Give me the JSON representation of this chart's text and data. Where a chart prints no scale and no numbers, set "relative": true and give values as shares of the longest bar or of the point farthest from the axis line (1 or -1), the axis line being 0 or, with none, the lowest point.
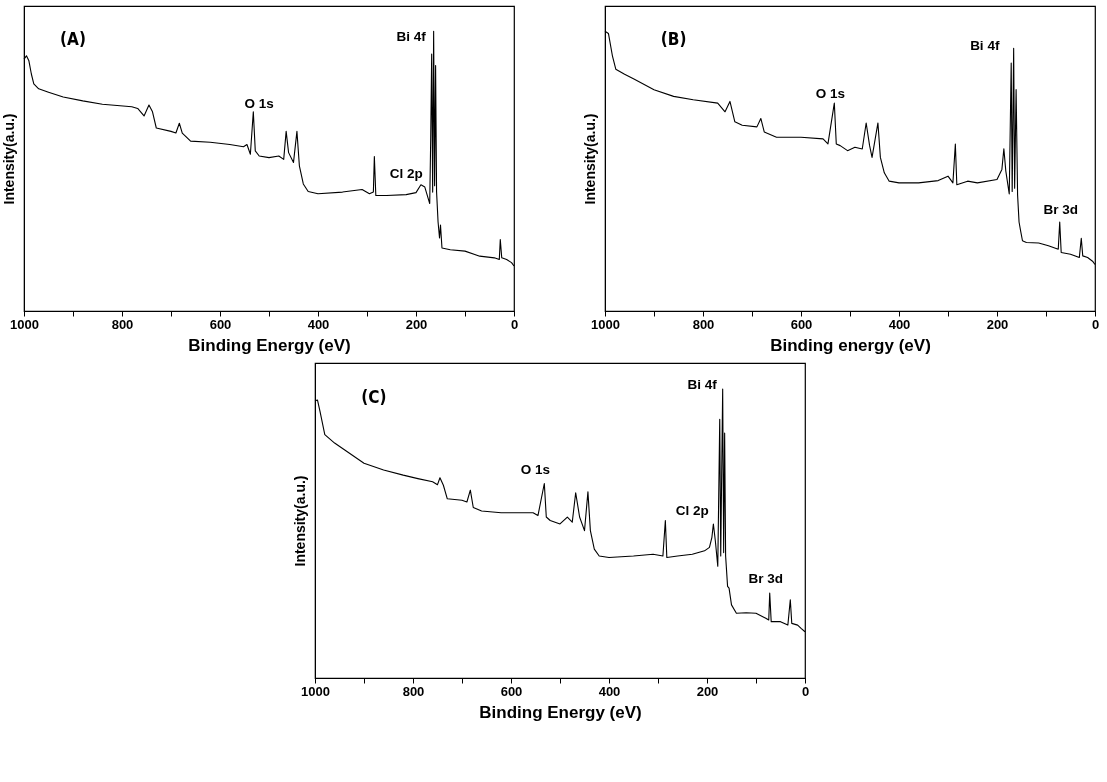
{
  "chart_data": [
    {
      "type": "line",
      "xlabel": "Binding Energy (eV)",
      "ylabel": "Intensity(a.u.)",
      "relative": true,
      "tick_labels": "x",
      "xlim": [
        1000,
        0
      ],
      "xticks": [
        1000,
        {
          "value": 900,
          "label": null
        },
        800,
        {
          "value": 700,
          "label": null
        },
        600,
        {
          "value": 500,
          "label": null
        },
        400,
        {
          "value": 300,
          "label": null
        },
        200,
        {
          "value": 100,
          "label": null
        },
        0
      ],
      "annotations": [
        "(A)",
        "O 1s",
        "Bi 4f",
        "Cl 2p"
      ],
      "x": [
        1000,
        995,
        990,
        985,
        980,
        970,
        950,
        920,
        880,
        840,
        780,
        768,
        755,
        745,
        738,
        730,
        700,
        690,
        683,
        677,
        660,
        620,
        580,
        552,
        545,
        538,
        532,
        528,
        520,
        500,
        480,
        470,
        465,
        460,
        450,
        443,
        438,
        430,
        420,
        400,
        350,
        310,
        295,
        287,
        285,
        282,
        260,
        220,
        200,
        190,
        182,
        172,
        170,
        168,
        166,
        164,
        162,
        160,
        158,
        155,
        152,
        150,
        147,
        130,
        100,
        70,
        40,
        30,
        28,
        25,
        15,
        5,
        0
      ],
      "series": [
        {
          "color": "#000000",
          "values": [
            0.9,
            0.912,
            0.894,
            0.847,
            0.812,
            0.794,
            0.782,
            0.765,
            0.751,
            0.739,
            0.73,
            0.724,
            0.697,
            0.736,
            0.713,
            0.654,
            0.642,
            0.636,
            0.671,
            0.636,
            0.607,
            0.603,
            0.595,
            0.587,
            0.595,
            0.56,
            0.712,
            0.572,
            0.554,
            0.548,
            0.554,
            0.542,
            0.642,
            0.566,
            0.531,
            0.642,
            0.519,
            0.454,
            0.427,
            0.419,
            0.425,
            0.434,
            0.419,
            0.425,
            0.552,
            0.413,
            0.413,
            0.416,
            0.423,
            0.451,
            0.443,
            0.384,
            0.613,
            0.918,
            0.425,
            1.0,
            0.448,
            0.877,
            0.425,
            0.319,
            0.261,
            0.307,
            0.225,
            0.219,
            0.214,
            0.196,
            0.19,
            0.184,
            0.255,
            0.19,
            0.184,
            0.173,
            0.161
          ]
        }
      ]
    },
    {
      "type": "line",
      "xlabel": "Binding energy (eV)",
      "ylabel": "Intensity(a.u.)",
      "relative": true,
      "tick_labels": "x",
      "xlim": [
        1000,
        0
      ],
      "xticks": [
        1000,
        {
          "value": 900,
          "label": null
        },
        800,
        {
          "value": 700,
          "label": null
        },
        600,
        {
          "value": 500,
          "label": null
        },
        400,
        {
          "value": 300,
          "label": null
        },
        200,
        {
          "value": 100,
          "label": null
        },
        0
      ],
      "annotations": [
        "(B)",
        "O 1s",
        "Bi 4f",
        "Br 3d"
      ],
      "x": [
        1000,
        993,
        985,
        978,
        960,
        940,
        900,
        860,
        820,
        770,
        755,
        745,
        735,
        720,
        690,
        682,
        675,
        650,
        600,
        555,
        545,
        532,
        528,
        520,
        505,
        490,
        475,
        467,
        460,
        455,
        443,
        438,
        430,
        420,
        400,
        360,
        320,
        300,
        290,
        285,
        282,
        260,
        240,
        200,
        190,
        186,
        182,
        175,
        171,
        169,
        166,
        164,
        161,
        158,
        155,
        152,
        148,
        140,
        115,
        95,
        75,
        72,
        69,
        50,
        32,
        28,
        25,
        15,
        5,
        0
      ],
      "series": [
        {
          "color": "#000000",
          "values": [
            1.0,
            0.992,
            0.913,
            0.864,
            0.846,
            0.828,
            0.791,
            0.767,
            0.755,
            0.743,
            0.712,
            0.749,
            0.676,
            0.664,
            0.658,
            0.688,
            0.64,
            0.621,
            0.621,
            0.615,
            0.597,
            0.743,
            0.597,
            0.591,
            0.573,
            0.585,
            0.579,
            0.672,
            0.591,
            0.549,
            0.672,
            0.549,
            0.494,
            0.464,
            0.458,
            0.458,
            0.466,
            0.482,
            0.458,
            0.597,
            0.451,
            0.464,
            0.458,
            0.47,
            0.506,
            0.58,
            0.5,
            0.418,
            0.886,
            0.427,
            0.939,
            0.439,
            0.791,
            0.415,
            0.318,
            0.288,
            0.251,
            0.245,
            0.243,
            0.233,
            0.221,
            0.318,
            0.209,
            0.203,
            0.191,
            0.26,
            0.197,
            0.191,
            0.178,
            0.166
          ]
        }
      ]
    },
    {
      "type": "line",
      "xlabel": "Binding Energy (eV)",
      "ylabel": "Intensity(a.u.)",
      "relative": true,
      "tick_labels": "x",
      "xlim": [
        1000,
        0
      ],
      "xticks": [
        1000,
        {
          "value": 900,
          "label": null
        },
        800,
        {
          "value": 700,
          "label": null
        },
        600,
        {
          "value": 500,
          "label": null
        },
        400,
        {
          "value": 300,
          "label": null
        },
        200,
        {
          "value": 100,
          "label": null
        },
        0
      ],
      "annotations": [
        "(C)",
        "O 1s",
        "Bi 4f",
        "Cl 2p",
        "Br 3d"
      ],
      "x": [
        1000,
        995,
        990,
        980,
        960,
        940,
        900,
        860,
        820,
        790,
        760,
        750,
        745,
        738,
        730,
        700,
        690,
        683,
        677,
        660,
        620,
        580,
        555,
        545,
        532,
        528,
        520,
        500,
        485,
        475,
        468,
        460,
        450,
        443,
        438,
        430,
        420,
        400,
        350,
        310,
        290,
        285,
        282,
        260,
        230,
        205,
        195,
        190,
        187,
        183,
        178,
        174,
        172,
        168,
        166,
        164,
        162,
        158,
        155,
        150,
        140,
        120,
        100,
        80,
        74,
        72,
        69,
        50,
        35,
        30,
        27,
        15,
        8,
        0
      ],
      "series": [
        {
          "color": "#000000",
          "values": [
            0.959,
            0.962,
            0.924,
            0.842,
            0.813,
            0.79,
            0.743,
            0.72,
            0.702,
            0.69,
            0.679,
            0.669,
            0.693,
            0.667,
            0.62,
            0.615,
            0.609,
            0.65,
            0.59,
            0.578,
            0.572,
            0.572,
            0.572,
            0.562,
            0.673,
            0.557,
            0.545,
            0.533,
            0.557,
            0.539,
            0.641,
            0.557,
            0.51,
            0.644,
            0.51,
            0.446,
            0.422,
            0.417,
            0.422,
            0.428,
            0.422,
            0.545,
            0.417,
            0.422,
            0.428,
            0.44,
            0.452,
            0.487,
            0.533,
            0.475,
            0.387,
            0.895,
            0.422,
            1.0,
            0.434,
            0.848,
            0.422,
            0.317,
            0.311,
            0.253,
            0.224,
            0.226,
            0.224,
            0.207,
            0.201,
            0.294,
            0.195,
            0.195,
            0.183,
            0.271,
            0.189,
            0.183,
            0.172,
            0.16
          ]
        }
      ]
    }
  ]
}
